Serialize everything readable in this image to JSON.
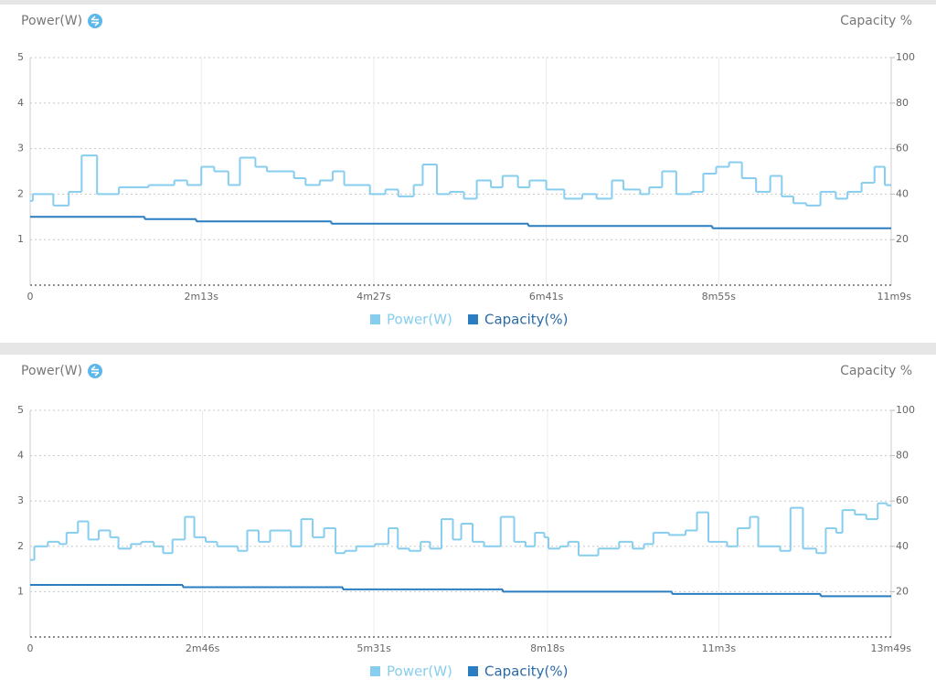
{
  "chart_data": [
    {
      "type": "line",
      "ylabel": "Power(W)",
      "y2label": "Capacity %",
      "xlim": [
        0,
        669
      ],
      "xticks": [
        0,
        {
          "value": 133,
          "label": "2m13s"
        },
        {
          "value": 267,
          "label": "4m27s"
        },
        {
          "value": 401,
          "label": "6m41s"
        },
        {
          "value": 535,
          "label": "8m55s"
        },
        {
          "value": 669,
          "label": "11m9s"
        }
      ],
      "ylim": [
        0,
        5
      ],
      "yticks": [
        1,
        2,
        3,
        4,
        5
      ],
      "y2lim": [
        0,
        100
      ],
      "y2ticks": [
        20,
        40,
        60,
        80,
        100
      ],
      "grid": true,
      "series": [
        {
          "name": "Power(W)",
          "color": "#86cdee",
          "x": [
            0,
            2,
            18,
            30,
            40,
            52,
            69,
            92,
            112,
            122,
            133,
            143,
            154,
            163,
            175,
            184,
            205,
            214,
            225,
            235,
            244,
            264,
            276,
            286,
            298,
            305,
            316,
            326,
            337,
            347,
            358,
            367,
            379,
            388,
            401,
            415,
            429,
            440,
            452,
            461,
            474,
            481,
            491,
            502,
            514,
            523,
            533,
            543,
            553,
            564,
            575,
            584,
            593,
            603,
            614,
            626,
            635,
            646,
            656,
            664
          ],
          "values": [
            1.85,
            2.0,
            1.75,
            2.05,
            2.85,
            2.0,
            2.15,
            2.2,
            2.3,
            2.2,
            2.6,
            2.5,
            2.2,
            2.8,
            2.6,
            2.5,
            2.35,
            2.2,
            2.3,
            2.5,
            2.2,
            2.0,
            2.1,
            1.95,
            2.2,
            2.65,
            2.0,
            2.05,
            1.9,
            2.3,
            2.15,
            2.4,
            2.15,
            2.3,
            2.1,
            1.9,
            2.0,
            1.9,
            2.3,
            2.1,
            2.0,
            2.15,
            2.5,
            2.0,
            2.05,
            2.45,
            2.6,
            2.7,
            2.35,
            2.05,
            2.4,
            1.95,
            1.8,
            1.75,
            2.05,
            1.9,
            2.05,
            2.25,
            2.6,
            2.2
          ]
        },
        {
          "name": "Capacity(%)",
          "color": "#2a7dc0",
          "axis": "y2",
          "x": [
            0,
            89,
            129,
            234,
            387,
            530
          ],
          "values": [
            30,
            29,
            28,
            27,
            26,
            25
          ]
        }
      ]
    },
    {
      "type": "line",
      "ylabel": "Power(W)",
      "y2label": "Capacity %",
      "xlim": [
        0,
        829
      ],
      "xticks": [
        0,
        {
          "value": 166,
          "label": "2m46s"
        },
        {
          "value": 331,
          "label": "5m31s"
        },
        {
          "value": 498,
          "label": "8m18s"
        },
        {
          "value": 663,
          "label": "11m3s"
        },
        {
          "value": 829,
          "label": "13m49s"
        }
      ],
      "ylim": [
        0,
        5
      ],
      "yticks": [
        1,
        2,
        3,
        4,
        5
      ],
      "y2lim": [
        0,
        100
      ],
      "y2ticks": [
        20,
        40,
        60,
        80,
        100
      ],
      "grid": true,
      "series": [
        {
          "name": "Power(W)",
          "color": "#86cdee",
          "x": [
            0,
            4,
            17,
            28,
            35,
            46,
            56,
            66,
            77,
            85,
            97,
            107,
            119,
            128,
            137,
            149,
            158,
            169,
            180,
            200,
            209,
            220,
            231,
            251,
            261,
            272,
            283,
            294,
            303,
            314,
            332,
            345,
            354,
            365,
            376,
            385,
            396,
            407,
            415,
            426,
            437,
            453,
            466,
            477,
            486,
            495,
            499,
            510,
            518,
            528,
            547,
            567,
            580,
            591,
            600,
            615,
            631,
            642,
            653,
            671,
            681,
            693,
            701,
            713,
            722,
            732,
            744,
            757,
            766,
            776,
            782,
            794,
            805,
            816,
            825
          ],
          "values": [
            1.7,
            2.0,
            2.1,
            2.05,
            2.3,
            2.55,
            2.15,
            2.35,
            2.2,
            1.95,
            2.05,
            2.1,
            2.0,
            1.85,
            2.15,
            2.65,
            2.2,
            2.1,
            2.0,
            1.9,
            2.35,
            2.1,
            2.35,
            2.0,
            2.6,
            2.2,
            2.4,
            1.85,
            1.9,
            2.0,
            2.05,
            2.4,
            1.95,
            1.9,
            2.1,
            1.95,
            2.6,
            2.15,
            2.5,
            2.1,
            2.0,
            2.65,
            2.1,
            2.0,
            2.3,
            2.2,
            1.95,
            2.0,
            2.1,
            1.8,
            1.95,
            2.1,
            1.95,
            2.05,
            2.3,
            2.25,
            2.35,
            2.75,
            2.1,
            2.0,
            2.4,
            2.65,
            2.0,
            2.0,
            1.9,
            2.85,
            1.95,
            1.85,
            2.4,
            2.3,
            2.8,
            2.7,
            2.6,
            2.95,
            2.9
          ]
        },
        {
          "name": "Capacity(%)",
          "color": "#2a7dc0",
          "axis": "y2",
          "x": [
            0,
            147,
            301,
            455,
            618,
            761
          ],
          "values": [
            23,
            22,
            21,
            20,
            19,
            18
          ]
        }
      ]
    }
  ]
}
